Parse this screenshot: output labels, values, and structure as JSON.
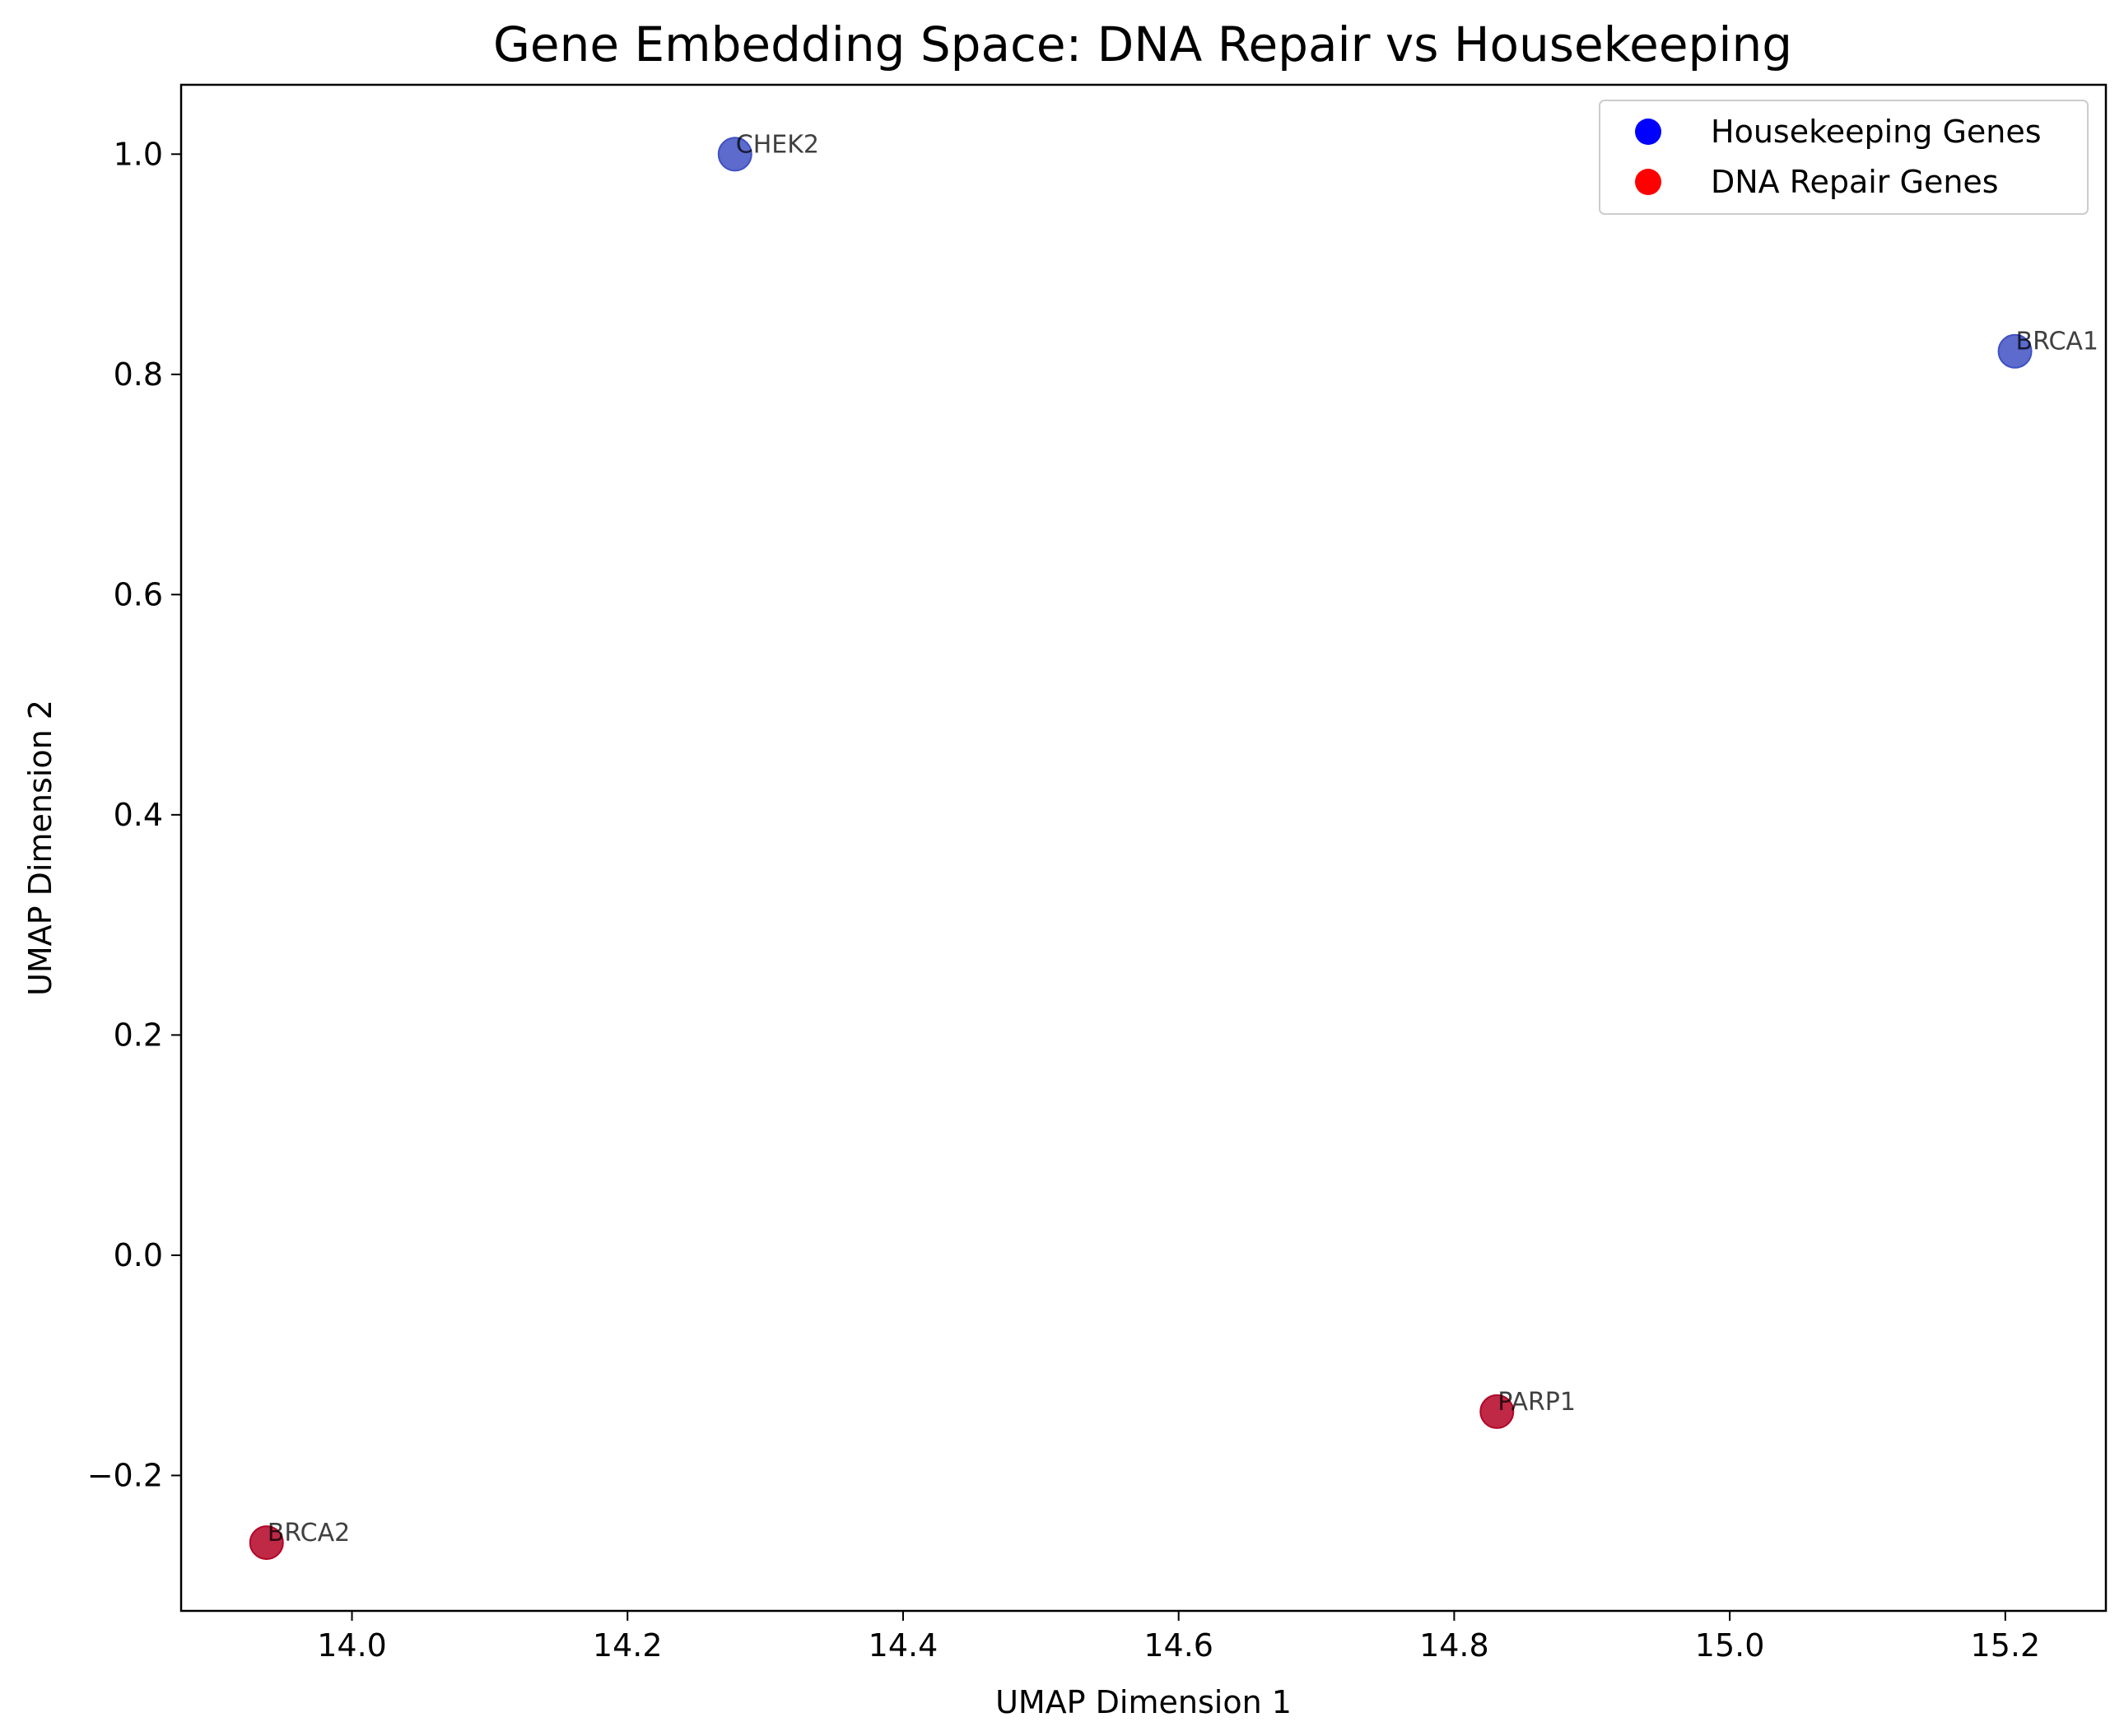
{
  "chart_data": {
    "type": "scatter",
    "title": "Gene Embedding Space: DNA Repair vs Housekeeping",
    "xlabel": "UMAP Dimension 1",
    "ylabel": "UMAP Dimension 2",
    "xlim": [
      13.876,
      15.273
    ],
    "ylim": [
      -0.323,
      1.063
    ],
    "xticks": [
      14.0,
      14.2,
      14.4,
      14.6,
      14.8,
      15.0,
      15.2
    ],
    "xtick_labels": [
      "14.0",
      "14.2",
      "14.4",
      "14.6",
      "14.8",
      "15.0",
      "15.2"
    ],
    "yticks": [
      -0.2,
      0.0,
      0.2,
      0.4,
      0.6,
      0.8,
      1.0
    ],
    "ytick_labels": [
      "−0.2",
      "0.0",
      "0.2",
      "0.4",
      "0.6",
      "0.8",
      "1.0"
    ],
    "grid": false,
    "legend_position": "top-right",
    "legend": [
      {
        "label": "Housekeeping Genes",
        "color": "#0000ff"
      },
      {
        "label": "DNA Repair Genes",
        "color": "#ff0000"
      }
    ],
    "points": [
      {
        "label": "CHEK2",
        "x": 14.278,
        "y": 1.0,
        "group": "Housekeeping Genes",
        "color": "#3f51c3"
      },
      {
        "label": "BRCA1",
        "x": 15.207,
        "y": 0.821,
        "group": "Housekeeping Genes",
        "color": "#3f51c3"
      },
      {
        "label": "PARP1",
        "x": 14.831,
        "y": -0.142,
        "group": "DNA Repair Genes",
        "color": "#b40426"
      },
      {
        "label": "BRCA2",
        "x": 13.938,
        "y": -0.261,
        "group": "DNA Repair Genes",
        "color": "#b40426"
      }
    ]
  }
}
